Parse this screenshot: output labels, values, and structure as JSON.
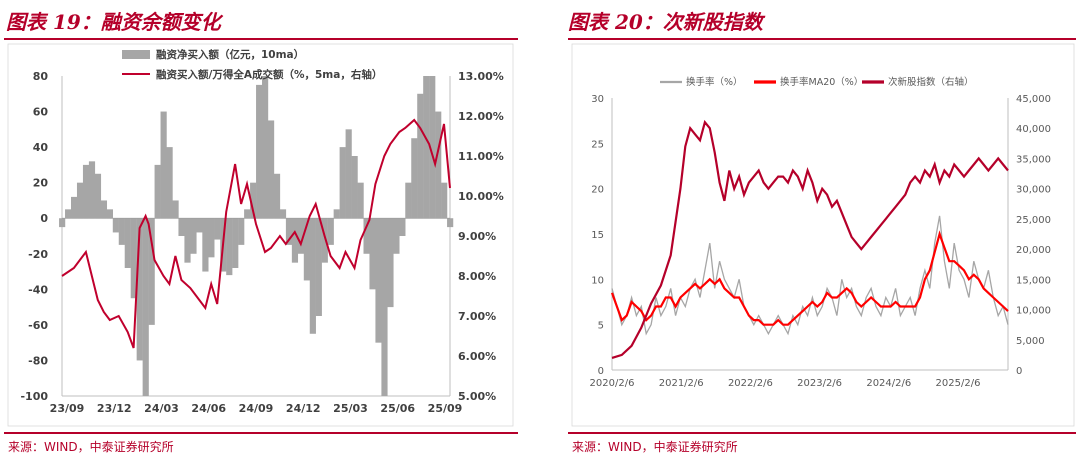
{
  "left": {
    "title": "图表 19：融资余额变化",
    "source": "来源：WIND，中泰证券研究所",
    "chart_data": {
      "type": "bar",
      "legend": [
        "融资净买入额（亿元，10ma）",
        "融资买入额/万得全A成交额（%，5ma，右轴）"
      ],
      "legend_placement": "top",
      "x_tick_labels": [
        "23/09",
        "23/12",
        "24/03",
        "24/06",
        "24/09",
        "24/12",
        "25/03",
        "25/06",
        "25/09"
      ],
      "y_left_ticks": [
        "80",
        "60",
        "40",
        "20",
        "0",
        "-20",
        "-40",
        "-60",
        "-80",
        "-100"
      ],
      "y_right_ticks": [
        "13.00%",
        "12.00%",
        "11.00%",
        "10.00%",
        "9.00%",
        "8.00%",
        "7.00%",
        "6.00%",
        "5.00%"
      ],
      "ylim_left": [
        -100,
        80
      ],
      "ylim_right": [
        5,
        13
      ],
      "series": [
        {
          "name": "融资净买入额（亿元，10ma）",
          "type": "bar",
          "axis": "left",
          "color": "#a6a6a6",
          "x": [
            0,
            4,
            8,
            12,
            16,
            20,
            24,
            28,
            32,
            36,
            40,
            44,
            48,
            52,
            56,
            60,
            64,
            68,
            72,
            76,
            80,
            84,
            88,
            92,
            96,
            100,
            104,
            108,
            112,
            116,
            120,
            124,
            128,
            132,
            136,
            140,
            144,
            148,
            152,
            156,
            160,
            164,
            168,
            172,
            176,
            180,
            184,
            188,
            192,
            196,
            200,
            204,
            208,
            212,
            216,
            220,
            224,
            228,
            232,
            236,
            240,
            244,
            248,
            252,
            256,
            260
          ],
          "values": [
            -5,
            5,
            12,
            20,
            30,
            32,
            25,
            10,
            5,
            -8,
            -15,
            -28,
            -45,
            -80,
            -100,
            -60,
            30,
            60,
            40,
            10,
            -10,
            -25,
            -20,
            -8,
            -30,
            -22,
            -12,
            -30,
            -32,
            -28,
            -15,
            5,
            20,
            75,
            80,
            55,
            25,
            5,
            -15,
            -25,
            -20,
            -35,
            -65,
            -55,
            -25,
            -15,
            5,
            40,
            50,
            35,
            20,
            -20,
            -40,
            -70,
            -100,
            -50,
            -20,
            -10,
            20,
            45,
            70,
            80,
            80,
            60,
            20,
            -5
          ]
        },
        {
          "name": "融资买入额/万得全A成交额（%，5ma，右轴）",
          "type": "line",
          "axis": "right",
          "color": "#c0002d",
          "x": [
            0,
            8,
            16,
            24,
            28,
            32,
            38,
            44,
            48,
            52,
            56,
            58,
            62,
            68,
            72,
            76,
            80,
            86,
            90,
            96,
            100,
            104,
            110,
            116,
            120,
            124,
            130,
            136,
            140,
            146,
            150,
            156,
            160,
            166,
            170,
            176,
            180,
            186,
            190,
            196,
            200,
            206,
            210,
            216,
            220,
            226,
            230,
            236,
            240,
            246,
            250,
            256,
            260
          ],
          "values": [
            8.0,
            8.2,
            8.6,
            7.4,
            7.1,
            6.9,
            7.0,
            6.6,
            6.2,
            9.2,
            9.5,
            9.3,
            8.4,
            8.0,
            7.8,
            8.5,
            7.9,
            7.7,
            7.5,
            7.2,
            7.8,
            7.3,
            9.6,
            10.8,
            9.8,
            10.3,
            9.3,
            8.6,
            8.7,
            9.0,
            8.8,
            9.1,
            8.8,
            9.5,
            9.8,
            9.0,
            8.5,
            8.2,
            8.6,
            8.2,
            8.9,
            9.4,
            10.3,
            11.0,
            11.3,
            11.6,
            11.7,
            11.9,
            11.7,
            11.3,
            10.8,
            11.8,
            10.2
          ]
        }
      ]
    }
  },
  "right": {
    "title": "图表 20：次新股指数",
    "source": "来源：WIND，中泰证券研究所",
    "chart_data": {
      "type": "line",
      "legend": [
        "换手率（%）",
        "换手率MA20（%）",
        "次新股指数（右轴）"
      ],
      "legend_placement": "top",
      "x_tick_labels": [
        "2020/2/6",
        "2021/2/6",
        "2022/2/6",
        "2023/2/6",
        "2024/2/6",
        "2025/2/6"
      ],
      "y_left_ticks": [
        "30",
        "25",
        "20",
        "15",
        "10",
        "5",
        "0"
      ],
      "y_right_ticks": [
        "45,000",
        "40,000",
        "35,000",
        "30,000",
        "25,000",
        "20,000",
        "15,000",
        "10,000",
        "5,000",
        "0"
      ],
      "ylim_left": [
        0,
        30
      ],
      "ylim_right": [
        0,
        45000
      ],
      "series": [
        {
          "name": "换手率（%）",
          "axis": "left",
          "color": "#a6a6a6",
          "x": [
            0,
            5,
            10,
            15,
            20,
            25,
            30,
            35,
            40,
            45,
            50,
            55,
            60,
            65,
            70,
            75,
            80,
            85,
            90,
            95,
            100,
            105,
            110,
            115,
            120,
            125,
            130,
            135,
            140,
            145,
            150,
            155,
            160,
            165,
            170,
            175,
            180,
            185,
            190,
            195,
            200,
            205,
            210,
            215,
            220,
            225,
            230,
            235,
            240,
            245,
            250,
            255,
            260,
            265,
            270,
            275,
            280,
            285,
            290,
            295,
            300,
            305,
            310,
            315,
            320,
            325,
            330,
            335,
            340,
            345,
            350,
            355,
            360,
            365,
            370,
            375,
            380,
            385,
            390,
            395,
            400,
            405
          ],
          "values": [
            9,
            7,
            5,
            6,
            8,
            6,
            7,
            4,
            5,
            8,
            6,
            7,
            9,
            6,
            8,
            7,
            9,
            10,
            8,
            11,
            14,
            9,
            12,
            10,
            9,
            8,
            10,
            7,
            6,
            5,
            6,
            5,
            4,
            5,
            6,
            5,
            4,
            6,
            5,
            7,
            6,
            8,
            6,
            7,
            9,
            8,
            6,
            10,
            8,
            9,
            7,
            6,
            8,
            9,
            7,
            6,
            8,
            7,
            9,
            6,
            7,
            8,
            6,
            9,
            11,
            9,
            14,
            17,
            12,
            9,
            14,
            11,
            10,
            8,
            12,
            10,
            9,
            11,
            8,
            6,
            7,
            5
          ]
        },
        {
          "name": "换手率MA20（%）",
          "axis": "left",
          "color": "#ff0000",
          "x": [
            0,
            5,
            10,
            15,
            20,
            25,
            30,
            35,
            40,
            45,
            50,
            55,
            60,
            65,
            70,
            75,
            80,
            85,
            90,
            95,
            100,
            105,
            110,
            115,
            120,
            125,
            130,
            135,
            140,
            145,
            150,
            155,
            160,
            165,
            170,
            175,
            180,
            185,
            190,
            195,
            200,
            205,
            210,
            215,
            220,
            225,
            230,
            235,
            240,
            245,
            250,
            255,
            260,
            265,
            270,
            275,
            280,
            285,
            290,
            295,
            300,
            305,
            310,
            315,
            320,
            325,
            330,
            335,
            340,
            345,
            350,
            355,
            360,
            365,
            370,
            375,
            380,
            385,
            390,
            395,
            400,
            405
          ],
          "values": [
            8.5,
            7,
            5.5,
            6,
            7.5,
            7,
            6.5,
            5.5,
            6,
            7,
            7,
            8,
            8,
            7,
            8,
            8.5,
            9,
            9.5,
            9,
            9.5,
            10,
            9.5,
            10,
            9,
            8.5,
            8,
            8,
            7,
            6,
            5.5,
            5.5,
            5,
            5,
            5,
            5.5,
            5,
            5,
            5.5,
            6,
            6.5,
            7,
            7.5,
            7,
            7.5,
            8.5,
            8,
            8,
            8.5,
            9,
            8.5,
            7.5,
            7,
            7.5,
            8,
            7.5,
            7,
            7,
            7,
            7.5,
            7,
            7,
            7,
            7,
            8,
            10,
            11,
            13,
            15,
            13.5,
            12,
            12,
            11.5,
            11,
            10,
            10.5,
            10,
            9,
            8.5,
            8,
            7.5,
            7,
            6.5
          ]
        },
        {
          "name": "次新股指数（右轴）",
          "axis": "right",
          "color": "#b5002a",
          "x": [
            0,
            10,
            20,
            30,
            40,
            50,
            60,
            70,
            75,
            80,
            85,
            90,
            95,
            100,
            105,
            110,
            115,
            120,
            125,
            130,
            135,
            140,
            145,
            150,
            155,
            160,
            165,
            170,
            175,
            180,
            185,
            190,
            195,
            200,
            205,
            210,
            215,
            220,
            225,
            230,
            235,
            240,
            245,
            250,
            255,
            260,
            265,
            270,
            275,
            280,
            285,
            290,
            295,
            300,
            305,
            310,
            315,
            320,
            325,
            330,
            335,
            340,
            345,
            350,
            355,
            360,
            365,
            370,
            375,
            380,
            385,
            390,
            395,
            400,
            405
          ],
          "values": [
            2000,
            2500,
            4000,
            7000,
            11000,
            14000,
            19000,
            30000,
            37000,
            40000,
            39000,
            38000,
            41000,
            40000,
            36000,
            31000,
            28000,
            33000,
            30000,
            32000,
            29000,
            31000,
            32000,
            33000,
            31000,
            30000,
            31000,
            32000,
            32000,
            31000,
            33000,
            32000,
            30000,
            33000,
            31000,
            28000,
            30000,
            29000,
            27000,
            28000,
            26000,
            24000,
            22000,
            21000,
            20000,
            21000,
            22000,
            23000,
            24000,
            25000,
            26000,
            27000,
            28000,
            29000,
            31000,
            32000,
            31000,
            33000,
            32000,
            34000,
            31000,
            33000,
            32000,
            34000,
            33000,
            32000,
            33000,
            34000,
            35000,
            34000,
            33000,
            34000,
            35000,
            34000,
            33000
          ]
        }
      ]
    }
  }
}
